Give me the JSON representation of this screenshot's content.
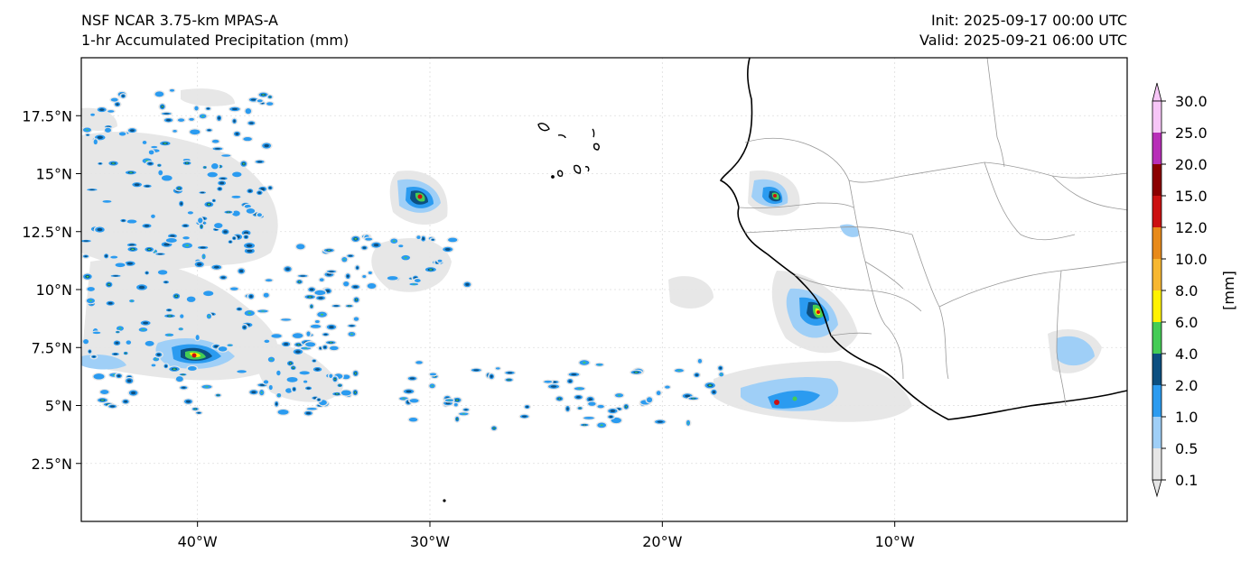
{
  "header": {
    "title_left_1": "NSF NCAR 3.75-km MPAS-A",
    "title_left_2": "1-hr Accumulated Precipitation (mm)",
    "title_right_1": "Init: 2025-09-17 00:00 UTC",
    "title_right_2": "Valid: 2025-09-21 06:00 UTC"
  },
  "map": {
    "lon_range": [
      -45,
      0
    ],
    "lat_range": [
      0,
      20
    ],
    "lon_ticks": [
      {
        "value": -40,
        "label": "40°W"
      },
      {
        "value": -30,
        "label": "30°W"
      },
      {
        "value": -20,
        "label": "20°W"
      },
      {
        "value": -10,
        "label": "10°W"
      }
    ],
    "lat_ticks": [
      {
        "value": 2.5,
        "label": "2.5°N"
      },
      {
        "value": 5,
        "label": "5°N"
      },
      {
        "value": 7.5,
        "label": "7.5°N"
      },
      {
        "value": 10,
        "label": "10°N"
      },
      {
        "value": 12.5,
        "label": "12.5°N"
      },
      {
        "value": 15,
        "label": "15°N"
      },
      {
        "value": 17.5,
        "label": "17.5°N"
      }
    ],
    "gridlines": true,
    "coastline_color": "#000000",
    "border_color": "#999999"
  },
  "colorbar": {
    "unit_label": "[mm]",
    "levels": [
      "0.1",
      "0.5",
      "1.0",
      "2.0",
      "4.0",
      "6.0",
      "8.0",
      "10.0",
      "12.0",
      "15.0",
      "20.0",
      "25.0",
      "30.0"
    ],
    "colors": [
      "#e6e6e6",
      "#9fcff7",
      "#2b9bf0",
      "#0c4f80",
      "#44cc55",
      "#fff200",
      "#f7b731",
      "#e88a1a",
      "#cc1111",
      "#8b0000",
      "#b82eb8",
      "#f7c6f7"
    ],
    "extend": "both"
  }
}
